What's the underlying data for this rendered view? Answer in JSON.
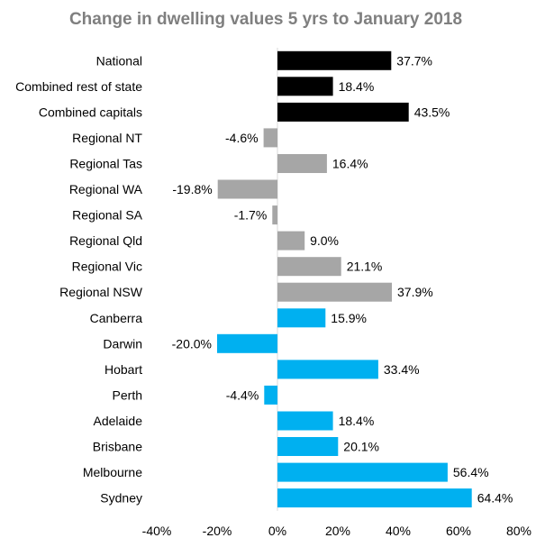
{
  "chart_data": {
    "type": "bar",
    "orientation": "horizontal",
    "title": "Change in dwelling values 5 yrs to January 2018",
    "xlabel": "",
    "ylabel": "",
    "xlim": [
      -40,
      80
    ],
    "x_ticks": [
      "-40%",
      "-20%",
      "0%",
      "20%",
      "40%",
      "60%",
      "80%"
    ],
    "grid": false,
    "categories": [
      "National",
      "Combined rest of state",
      "Combined capitals",
      "Regional NT",
      "Regional Tas",
      "Regional WA",
      "Regional SA",
      "Regional Qld",
      "Regional Vic",
      "Regional NSW",
      "Canberra",
      "Darwin",
      "Hobart",
      "Perth",
      "Adelaide",
      "Brisbane",
      "Melbourne",
      "Sydney"
    ],
    "values": [
      37.7,
      18.4,
      43.5,
      -4.6,
      16.4,
      -19.8,
      -1.7,
      9.0,
      21.1,
      37.9,
      15.9,
      -20.0,
      33.4,
      -4.4,
      18.4,
      20.1,
      56.4,
      64.4
    ],
    "value_labels": [
      "37.7%",
      "18.4%",
      "43.5%",
      "-4.6%",
      "16.4%",
      "-19.8%",
      "-1.7%",
      "9.0%",
      "21.1%",
      "37.9%",
      "15.9%",
      "-20.0%",
      "33.4%",
      "-4.4%",
      "18.4%",
      "20.1%",
      "56.4%",
      "64.4%"
    ],
    "colors": [
      "#000000",
      "#000000",
      "#000000",
      "#a6a6a6",
      "#a6a6a6",
      "#a6a6a6",
      "#a6a6a6",
      "#a6a6a6",
      "#a6a6a6",
      "#a6a6a6",
      "#00b0f0",
      "#00b0f0",
      "#00b0f0",
      "#00b0f0",
      "#00b0f0",
      "#00b0f0",
      "#00b0f0",
      "#00b0f0"
    ]
  }
}
